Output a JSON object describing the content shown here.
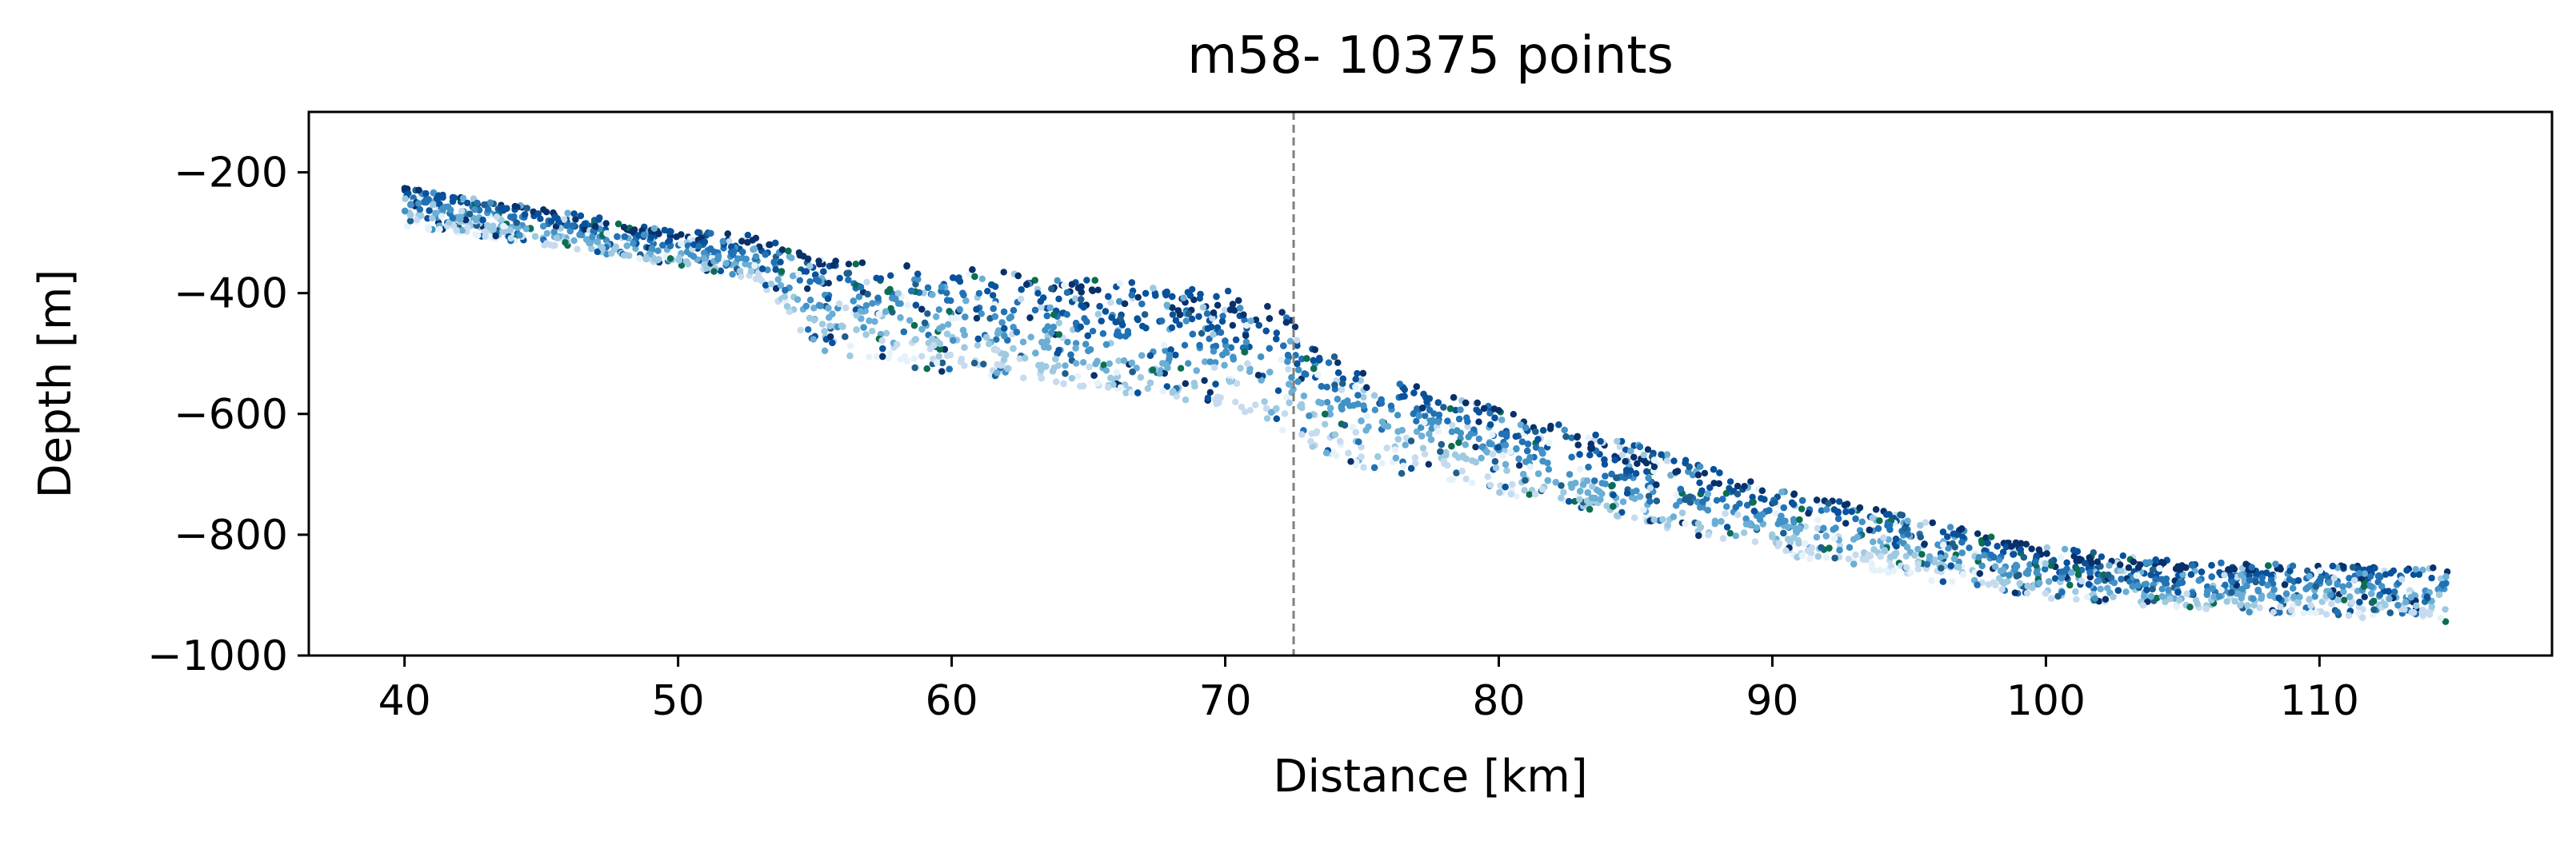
{
  "chart_data": {
    "type": "scatter",
    "title": "m58- 10375 points",
    "xlabel": "Distance [km]",
    "ylabel": "Depth [m]",
    "xlim": [
      36.5,
      118.5
    ],
    "ylim": [
      -1000,
      -100
    ],
    "xticks": [
      40,
      50,
      60,
      70,
      80,
      90,
      100,
      110
    ],
    "xtick_labels": [
      "40",
      "50",
      "60",
      "70",
      "80",
      "90",
      "100",
      "110"
    ],
    "yticks": [
      -200,
      -400,
      -600,
      -800,
      -1000
    ],
    "ytick_labels": [
      "−200",
      "−400",
      "−600",
      "−800",
      "−1000"
    ],
    "vline_x": 72.5,
    "grid": false,
    "point_colors": [
      "#08306b",
      "#08519c",
      "#2171b5",
      "#4292c6",
      "#6baed6",
      "#9ecae1",
      "#c6dbef",
      "#e6f2fa",
      "#0b6e4f",
      "#1f5f8b"
    ],
    "band": {
      "x": [
        40,
        45,
        50,
        53,
        54,
        55,
        58,
        62,
        66,
        70,
        71.5,
        72.5,
        73.5,
        75,
        78,
        80,
        85,
        90,
        95,
        100,
        103,
        106,
        110,
        114.7
      ],
      "top": [
        -225,
        -260,
        -295,
        -305,
        -325,
        -340,
        -350,
        -365,
        -380,
        -395,
        -410,
        -440,
        -490,
        -530,
        -565,
        -590,
        -650,
        -720,
        -770,
        -820,
        -835,
        -845,
        -850,
        -855
      ],
      "bottom": [
        -290,
        -320,
        -355,
        -380,
        -440,
        -495,
        -520,
        -545,
        -565,
        -585,
        -610,
        -640,
        -670,
        -690,
        -710,
        -730,
        -780,
        -830,
        -870,
        -905,
        -915,
        -925,
        -935,
        -945
      ]
    }
  }
}
